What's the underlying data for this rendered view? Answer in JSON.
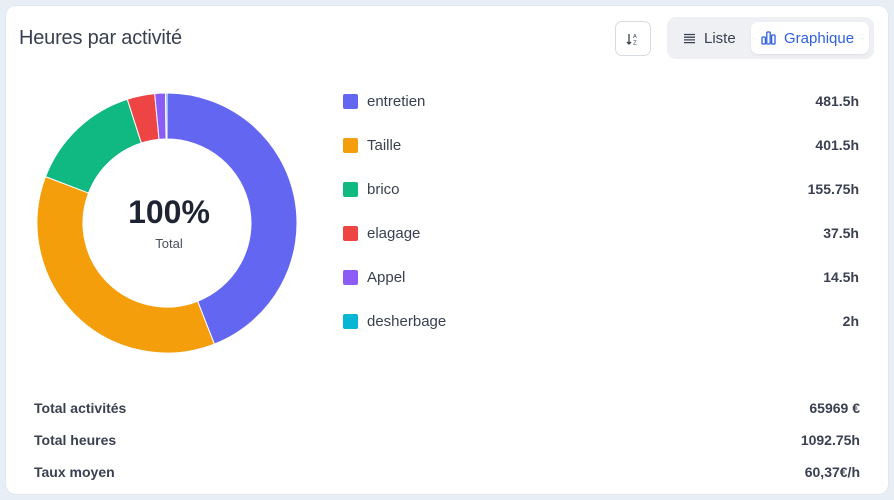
{
  "header": {
    "title": "Heures par activité",
    "sort_icon": "sort-az-icon",
    "view_toggle": {
      "list_label": "Liste",
      "chart_label": "Graphique",
      "active": "Graphique"
    }
  },
  "donut": {
    "center_value": "100%",
    "center_label": "Total"
  },
  "chart_data": {
    "type": "pie",
    "donut": true,
    "categories": [
      "entretien",
      "Taille",
      "brico",
      "elagage",
      "Appel",
      "desherbage"
    ],
    "values": [
      481.5,
      401.5,
      155.75,
      37.5,
      14.5,
      2
    ],
    "value_labels": [
      "481.5h",
      "401.5h",
      "155.75h",
      "37.5h",
      "14.5h",
      "2h"
    ],
    "colors": [
      "#6366f1",
      "#f59e0b",
      "#10b981",
      "#ef4444",
      "#8b5cf6",
      "#06b6d4"
    ]
  },
  "summary": [
    {
      "label": "Total activités",
      "value": "65969 €"
    },
    {
      "label": "Total heures",
      "value": "1092.75h"
    },
    {
      "label": "Taux moyen",
      "value": "60,37€/h"
    }
  ]
}
